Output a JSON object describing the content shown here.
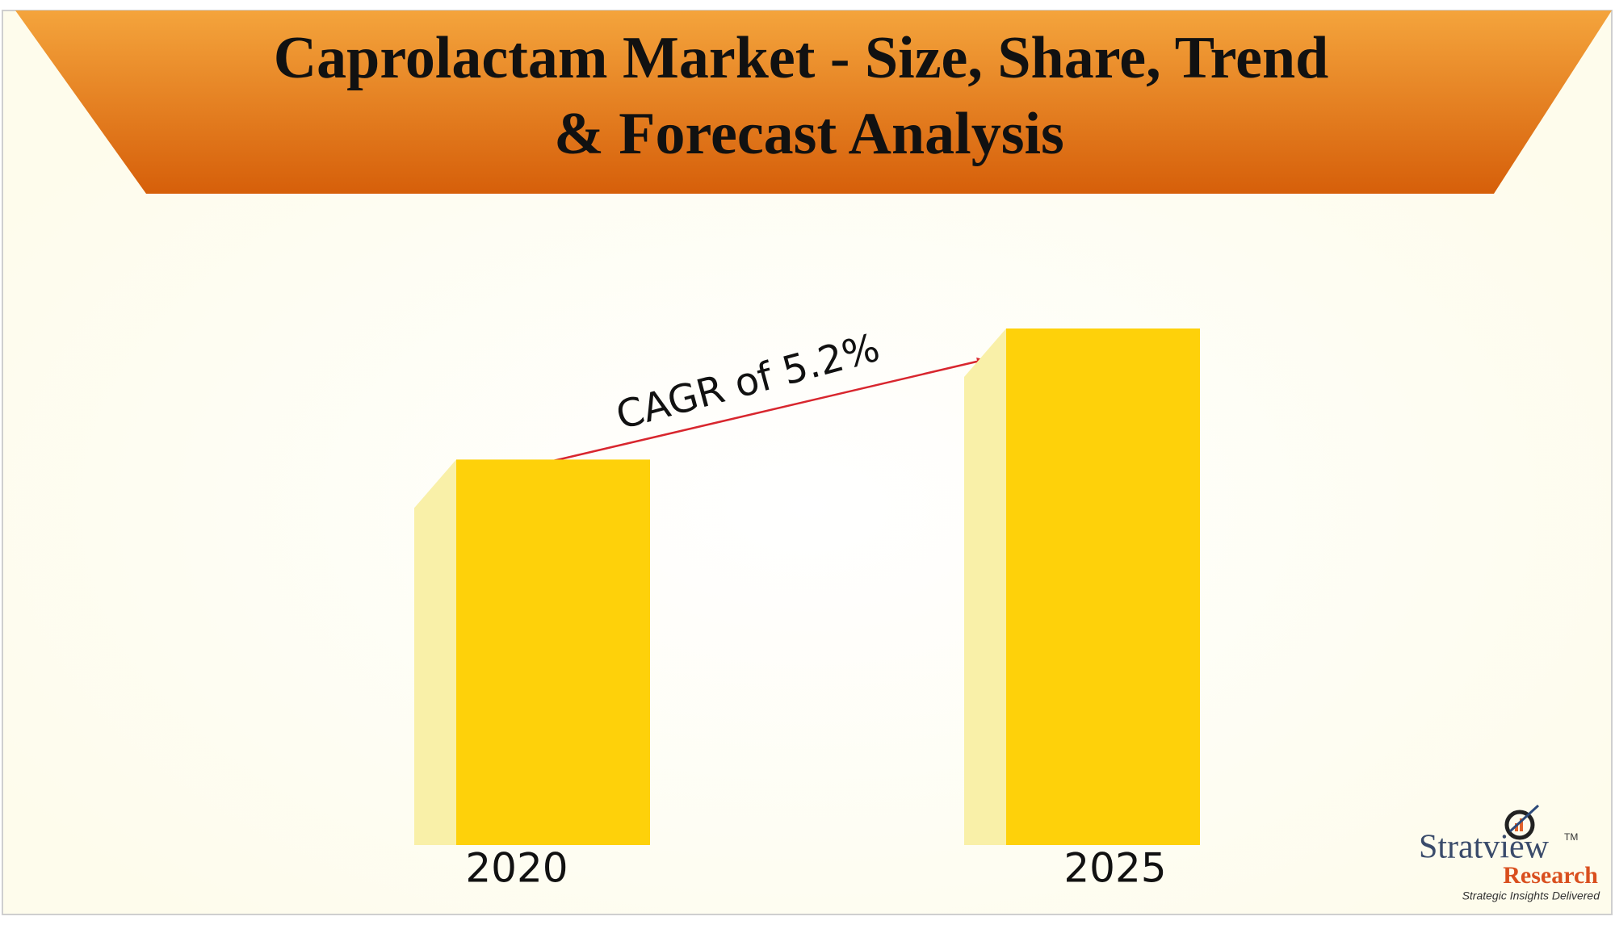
{
  "chart_data": {
    "type": "bar",
    "title_lines": [
      "Caprolactam Market - Size, Share, Trend",
      "& Forecast Analysis"
    ],
    "categories": [
      "2020",
      "2025"
    ],
    "values": [
      100,
      134
    ],
    "color": "#fed10a",
    "shadow_color": "#f9f0a8",
    "ylim": [
      0,
      134
    ],
    "annotation": "CAGR of 5.2%",
    "logo": {
      "name": "Stratview",
      "trademark": "TM",
      "subname": "Research",
      "tagline": "Strategic Insights Delivered"
    }
  }
}
